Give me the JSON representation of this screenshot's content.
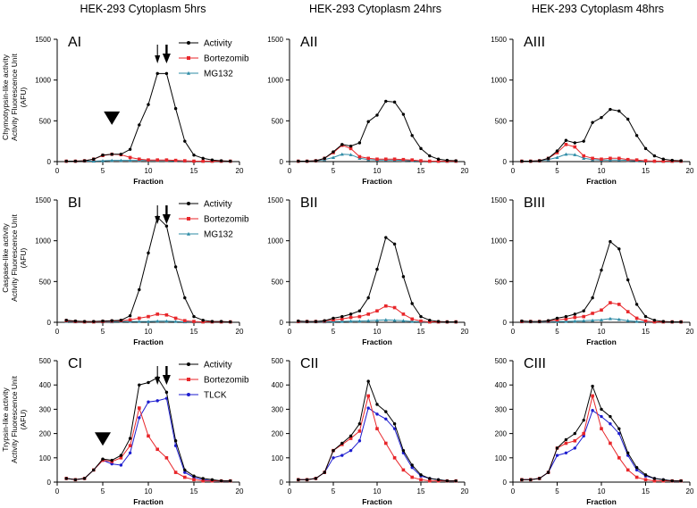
{
  "figure": {
    "column_titles": [
      "HEK-293 Cytoplasm 5hrs",
      "HEK-293 Cytoplasm 24hrs",
      "HEK-293 Cytoplasm 48hrs"
    ],
    "row_ylabels": [
      [
        "Chymotrypsin-like activity",
        "Activity Fluorescence Unit",
        "(AFU)"
      ],
      [
        "Caspase-like activity",
        "Activity Fluorescence Unit",
        "(AFU)"
      ],
      [
        "Trypsin-like activity",
        "Activity Fluorescence Unit",
        "(AFU)"
      ]
    ],
    "colors": {
      "Activity": "#000000",
      "Bortezomib": "#e8262a",
      "MG132": "#2e8ba6",
      "TLCK": "#1d1dcf"
    }
  },
  "chart_data": [
    {
      "type": "line",
      "panel": "AI",
      "xlabel": "Fraction",
      "ylabel": "",
      "xlim": [
        0,
        20
      ],
      "ylim": [
        0,
        1500
      ],
      "xticks": [
        0,
        5,
        10,
        15,
        20
      ],
      "yticks": [
        0,
        500,
        1000,
        1500
      ],
      "legend": [
        "Activity",
        "Bortezomib",
        "MG132"
      ],
      "annotations": {
        "thin_arrow_at": 11,
        "thick_arrow_at": 12,
        "arrowhead_at": 6
      },
      "x": [
        1,
        2,
        3,
        4,
        5,
        6,
        7,
        8,
        9,
        10,
        11,
        12,
        13,
        14,
        15,
        16,
        17,
        18,
        19
      ],
      "series": [
        {
          "name": "Activity",
          "values": [
            5,
            5,
            10,
            30,
            80,
            90,
            90,
            150,
            450,
            700,
            1080,
            1080,
            650,
            250,
            80,
            40,
            20,
            10,
            5
          ]
        },
        {
          "name": "Bortezomib",
          "values": [
            5,
            5,
            10,
            30,
            75,
            90,
            85,
            50,
            30,
            20,
            20,
            20,
            15,
            10,
            5,
            5,
            5,
            5,
            5
          ]
        },
        {
          "name": "MG132",
          "values": [
            5,
            5,
            5,
            5,
            10,
            15,
            15,
            15,
            15,
            15,
            15,
            15,
            10,
            5,
            5,
            5,
            5,
            5,
            5
          ]
        }
      ]
    },
    {
      "type": "line",
      "panel": "AII",
      "xlabel": "Fraction",
      "ylabel": "",
      "xlim": [
        0,
        20
      ],
      "ylim": [
        0,
        1500
      ],
      "xticks": [
        0,
        5,
        10,
        15,
        20
      ],
      "yticks": [
        0,
        500,
        1000,
        1500
      ],
      "x": [
        1,
        2,
        3,
        4,
        5,
        6,
        7,
        8,
        9,
        10,
        11,
        12,
        13,
        14,
        15,
        16,
        17,
        18,
        19
      ],
      "series": [
        {
          "name": "Activity",
          "values": [
            5,
            5,
            10,
            40,
            120,
            210,
            190,
            230,
            490,
            570,
            740,
            730,
            580,
            320,
            160,
            70,
            30,
            15,
            10
          ]
        },
        {
          "name": "Bortezomib",
          "values": [
            5,
            5,
            10,
            40,
            110,
            200,
            160,
            60,
            40,
            30,
            30,
            30,
            25,
            20,
            10,
            5,
            5,
            5,
            5
          ]
        },
        {
          "name": "MG132",
          "values": [
            5,
            5,
            10,
            25,
            50,
            90,
            85,
            40,
            25,
            20,
            20,
            20,
            15,
            10,
            5,
            5,
            5,
            5,
            5
          ]
        }
      ]
    },
    {
      "type": "line",
      "panel": "AIII",
      "xlabel": "Fraction",
      "ylabel": "",
      "xlim": [
        0,
        20
      ],
      "ylim": [
        0,
        1500
      ],
      "xticks": [
        0,
        5,
        10,
        15,
        20
      ],
      "yticks": [
        0,
        500,
        1000,
        1500
      ],
      "x": [
        1,
        2,
        3,
        4,
        5,
        6,
        7,
        8,
        9,
        10,
        11,
        12,
        13,
        14,
        15,
        16,
        17,
        18,
        19
      ],
      "series": [
        {
          "name": "Activity",
          "values": [
            5,
            5,
            10,
            40,
            130,
            260,
            230,
            250,
            480,
            540,
            640,
            620,
            520,
            320,
            160,
            70,
            30,
            15,
            10
          ]
        },
        {
          "name": "Bortezomib",
          "values": [
            5,
            5,
            10,
            40,
            110,
            210,
            180,
            70,
            40,
            30,
            40,
            40,
            25,
            20,
            10,
            5,
            5,
            5,
            5
          ]
        },
        {
          "name": "MG132",
          "values": [
            5,
            5,
            10,
            25,
            50,
            90,
            85,
            40,
            25,
            20,
            20,
            20,
            15,
            10,
            5,
            5,
            5,
            5,
            5
          ]
        }
      ]
    },
    {
      "type": "line",
      "panel": "BI",
      "xlabel": "Fraction",
      "ylabel": "",
      "xlim": [
        0,
        20
      ],
      "ylim": [
        0,
        1500
      ],
      "xticks": [
        0,
        5,
        10,
        15,
        20
      ],
      "yticks": [
        0,
        500,
        1000,
        1500
      ],
      "legend": [
        "Activity",
        "Bortezomib",
        "MG132"
      ],
      "annotations": {
        "thin_arrow_at": 11,
        "thick_arrow_at": 12
      },
      "x": [
        1,
        2,
        3,
        4,
        5,
        6,
        7,
        8,
        9,
        10,
        11,
        12,
        13,
        14,
        15,
        16,
        17,
        18,
        19
      ],
      "series": [
        {
          "name": "Activity",
          "values": [
            25,
            15,
            10,
            10,
            15,
            20,
            25,
            80,
            400,
            850,
            1290,
            1180,
            680,
            300,
            70,
            25,
            10,
            10,
            5
          ]
        },
        {
          "name": "Bortezomib",
          "values": [
            20,
            10,
            5,
            5,
            10,
            15,
            20,
            30,
            50,
            70,
            100,
            90,
            50,
            20,
            10,
            5,
            5,
            5,
            5
          ]
        },
        {
          "name": "MG132",
          "values": [
            10,
            5,
            5,
            5,
            5,
            5,
            10,
            10,
            10,
            10,
            15,
            15,
            10,
            5,
            5,
            5,
            5,
            5,
            5
          ]
        }
      ]
    },
    {
      "type": "line",
      "panel": "BII",
      "xlabel": "Fraction",
      "ylabel": "",
      "xlim": [
        0,
        20
      ],
      "ylim": [
        0,
        1500
      ],
      "xticks": [
        0,
        5,
        10,
        15,
        20
      ],
      "yticks": [
        0,
        500,
        1000,
        1500
      ],
      "x": [
        1,
        2,
        3,
        4,
        5,
        6,
        7,
        8,
        9,
        10,
        11,
        12,
        13,
        14,
        15,
        16,
        17,
        18,
        19
      ],
      "series": [
        {
          "name": "Activity",
          "values": [
            15,
            10,
            10,
            20,
            50,
            70,
            100,
            140,
            300,
            650,
            1040,
            960,
            560,
            230,
            70,
            25,
            10,
            5,
            5
          ]
        },
        {
          "name": "Bortezomib",
          "values": [
            10,
            10,
            10,
            15,
            30,
            40,
            60,
            70,
            100,
            140,
            200,
            180,
            100,
            40,
            15,
            5,
            5,
            5,
            5
          ]
        },
        {
          "name": "MG132",
          "values": [
            5,
            5,
            5,
            5,
            10,
            10,
            15,
            15,
            20,
            25,
            30,
            25,
            20,
            10,
            5,
            5,
            5,
            5,
            5
          ]
        }
      ]
    },
    {
      "type": "line",
      "panel": "BIII",
      "xlabel": "Fraction",
      "ylabel": "",
      "xlim": [
        0,
        20
      ],
      "ylim": [
        0,
        1500
      ],
      "xticks": [
        0,
        5,
        10,
        15,
        20
      ],
      "yticks": [
        0,
        500,
        1000,
        1500
      ],
      "x": [
        1,
        2,
        3,
        4,
        5,
        6,
        7,
        8,
        9,
        10,
        11,
        12,
        13,
        14,
        15,
        16,
        17,
        18,
        19
      ],
      "series": [
        {
          "name": "Activity",
          "values": [
            15,
            10,
            10,
            20,
            50,
            70,
            100,
            140,
            300,
            640,
            990,
            900,
            520,
            220,
            70,
            25,
            10,
            5,
            5
          ]
        },
        {
          "name": "Bortezomib",
          "values": [
            10,
            10,
            10,
            15,
            30,
            40,
            60,
            70,
            110,
            150,
            240,
            220,
            130,
            50,
            15,
            5,
            5,
            5,
            5
          ]
        },
        {
          "name": "MG132",
          "values": [
            5,
            5,
            5,
            5,
            10,
            10,
            15,
            20,
            25,
            30,
            45,
            35,
            20,
            10,
            5,
            5,
            5,
            5,
            5
          ]
        }
      ]
    },
    {
      "type": "line",
      "panel": "CI",
      "xlabel": "Fraction",
      "ylabel": "",
      "xlim": [
        0,
        20
      ],
      "ylim": [
        0,
        500
      ],
      "xticks": [
        0,
        5,
        10,
        15,
        20
      ],
      "yticks": [
        0,
        100,
        200,
        300,
        400,
        500
      ],
      "legend": [
        "Activity",
        "Bortezomib",
        "TLCK"
      ],
      "annotations": {
        "thin_arrow_at": 11,
        "thick_arrow_at": 12,
        "arrowhead_at": 5
      },
      "x": [
        1,
        2,
        3,
        4,
        5,
        6,
        7,
        8,
        9,
        10,
        11,
        12,
        13,
        14,
        15,
        16,
        17,
        18,
        19
      ],
      "series": [
        {
          "name": "Activity",
          "values": [
            15,
            10,
            15,
            50,
            95,
            90,
            110,
            180,
            400,
            410,
            430,
            370,
            170,
            50,
            25,
            15,
            10,
            5,
            5
          ]
        },
        {
          "name": "Bortezomib",
          "values": [
            15,
            10,
            15,
            50,
            90,
            85,
            100,
            150,
            305,
            190,
            135,
            100,
            40,
            20,
            10,
            5,
            5,
            5,
            5
          ]
        },
        {
          "name": "TLCK",
          "values": [
            15,
            10,
            15,
            50,
            90,
            75,
            70,
            120,
            265,
            330,
            335,
            345,
            150,
            40,
            20,
            10,
            5,
            5,
            5
          ]
        }
      ]
    },
    {
      "type": "line",
      "panel": "CII",
      "xlabel": "Fraction",
      "ylabel": "",
      "xlim": [
        0,
        20
      ],
      "ylim": [
        0,
        500
      ],
      "xticks": [
        0,
        5,
        10,
        15,
        20
      ],
      "yticks": [
        0,
        100,
        200,
        300,
        400,
        500
      ],
      "x": [
        1,
        2,
        3,
        4,
        5,
        6,
        7,
        8,
        9,
        10,
        11,
        12,
        13,
        14,
        15,
        16,
        17,
        18,
        19
      ],
      "series": [
        {
          "name": "Activity",
          "values": [
            10,
            10,
            15,
            40,
            130,
            160,
            190,
            240,
            415,
            320,
            290,
            240,
            130,
            70,
            30,
            15,
            10,
            5,
            5
          ]
        },
        {
          "name": "Bortezomib",
          "values": [
            10,
            10,
            15,
            40,
            130,
            155,
            180,
            210,
            355,
            220,
            160,
            100,
            50,
            20,
            10,
            5,
            5,
            5,
            5
          ]
        },
        {
          "name": "TLCK",
          "values": [
            10,
            10,
            15,
            40,
            100,
            110,
            130,
            170,
            305,
            280,
            260,
            220,
            120,
            60,
            25,
            15,
            10,
            5,
            5
          ]
        }
      ]
    },
    {
      "type": "line",
      "panel": "CIII",
      "xlabel": "Fraction",
      "ylabel": "",
      "xlim": [
        0,
        20
      ],
      "ylim": [
        0,
        500
      ],
      "xticks": [
        0,
        5,
        10,
        15,
        20
      ],
      "yticks": [
        0,
        100,
        200,
        300,
        400,
        500
      ],
      "x": [
        1,
        2,
        3,
        4,
        5,
        6,
        7,
        8,
        9,
        10,
        11,
        12,
        13,
        14,
        15,
        16,
        17,
        18,
        19
      ],
      "series": [
        {
          "name": "Activity",
          "values": [
            10,
            10,
            15,
            40,
            140,
            175,
            200,
            255,
            395,
            300,
            270,
            220,
            120,
            60,
            30,
            15,
            10,
            5,
            5
          ]
        },
        {
          "name": "Bortezomib",
          "values": [
            10,
            10,
            15,
            40,
            140,
            160,
            170,
            200,
            355,
            220,
            160,
            100,
            50,
            20,
            10,
            5,
            5,
            5,
            5
          ]
        },
        {
          "name": "TLCK",
          "values": [
            10,
            10,
            15,
            40,
            110,
            120,
            140,
            190,
            295,
            270,
            240,
            200,
            110,
            50,
            25,
            15,
            10,
            5,
            5
          ]
        }
      ]
    }
  ]
}
